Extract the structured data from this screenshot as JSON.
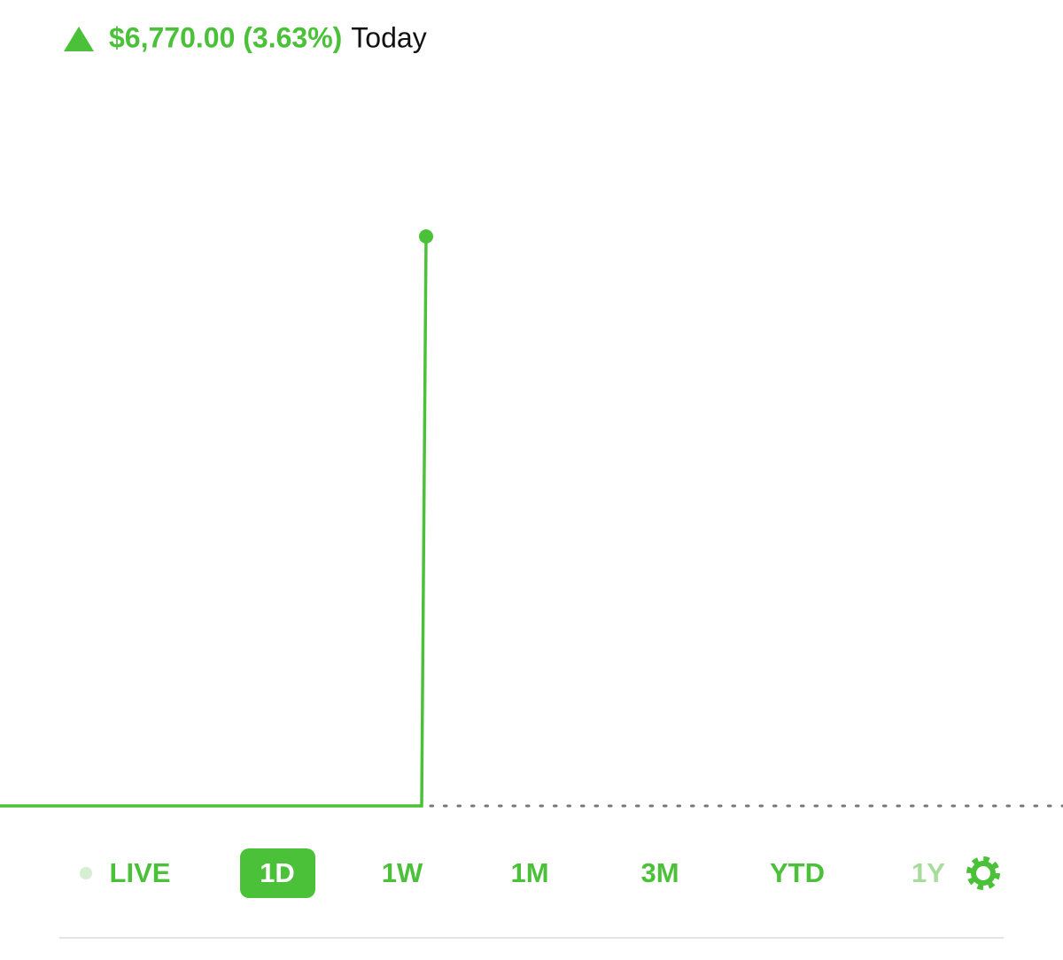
{
  "header": {
    "change": "$6,770.00 (3.63%)",
    "period": "Today"
  },
  "ranges": [
    "LIVE",
    "1D",
    "1W",
    "1M",
    "3M",
    "YTD",
    "1Y"
  ],
  "selected": "1D"
}
